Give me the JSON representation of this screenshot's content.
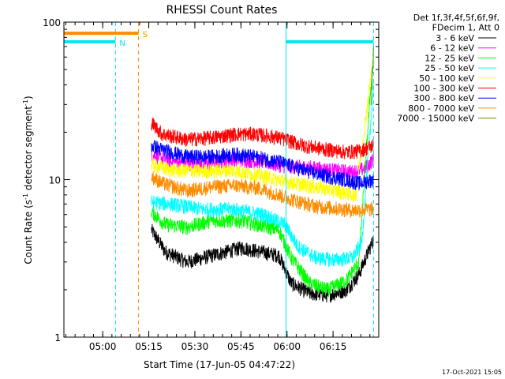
{
  "chart_data": {
    "type": "line",
    "title": "RHESSI Count Rates",
    "xlabel": "Start Time (17-Jun-05 04:47:22)",
    "ylabel_main": "Count Rate (s",
    "ylabel_sup1": "-1",
    "ylabel_mid": " detector segment",
    "ylabel_sup2": "-1",
    "ylabel_end": ")",
    "y_scale": "log",
    "ylim": [
      1,
      100
    ],
    "x_ticks": [
      "05:00",
      "05:15",
      "05:30",
      "05:45",
      "06:00",
      "06:15"
    ],
    "x_tick_minutes": [
      12.63,
      27.63,
      42.63,
      57.63,
      72.63,
      87.63
    ],
    "xlim_minutes": [
      0,
      102.5
    ],
    "y_ticks": [
      "1",
      "10",
      "100"
    ],
    "y_tick_values": [
      1,
      10,
      100
    ],
    "legend_header": [
      "Det 1f,3f,4f,5f,6f,9f,",
      "FDecim 1, Att 0"
    ],
    "legend_placement": "right",
    "data_start_minute": 28.5,
    "data_end_minute": 100.8,
    "series": [
      {
        "name": "3 - 6 keV",
        "color": "#000000",
        "x": [
          28.5,
          33,
          40,
          48,
          58,
          70,
          74,
          80,
          86,
          92,
          96,
          100.8
        ],
        "y": [
          4.8,
          3.5,
          3.0,
          3.3,
          3.7,
          3.3,
          2.2,
          1.9,
          1.85,
          2.0,
          2.5,
          4.2
        ]
      },
      {
        "name": "6 - 12 keV",
        "color": "#ff00ff",
        "x": [
          28.5,
          35,
          45,
          55,
          65,
          72,
          80,
          88,
          94,
          98,
          100.8
        ],
        "y": [
          14.5,
          13.0,
          12.5,
          13.5,
          13.0,
          12.2,
          12.0,
          11.5,
          11.2,
          11.8,
          13.5
        ]
      },
      {
        "name": "12 - 25 keV",
        "color": "#00ff00",
        "x": [
          28.5,
          33,
          40,
          48,
          58,
          70,
          74,
          80,
          86,
          92,
          96,
          100.8
        ],
        "y": [
          6.3,
          5.2,
          5.0,
          5.5,
          5.5,
          4.8,
          3.2,
          2.2,
          2.0,
          2.3,
          3.0,
          70
        ]
      },
      {
        "name": "25 - 50 keV",
        "color": "#00ffff",
        "x": [
          28.5,
          35,
          45,
          55,
          65,
          72,
          76,
          82,
          88,
          94,
          97,
          100.8
        ],
        "y": [
          7.2,
          7.0,
          6.5,
          6.5,
          6.0,
          5.2,
          3.8,
          3.2,
          3.1,
          3.2,
          4.0,
          40
        ]
      },
      {
        "name": "50 - 100 keV",
        "color": "#ffff00",
        "x": [
          28.5,
          35,
          45,
          55,
          65,
          75,
          85,
          95,
          100.8
        ],
        "y": [
          12.5,
          11.5,
          11.3,
          11.5,
          10.5,
          9.5,
          8.8,
          8.0,
          60
        ]
      },
      {
        "name": "100 - 300 keV",
        "color": "#ff0000",
        "x": [
          28.5,
          32,
          40,
          48,
          56,
          62,
          70,
          78,
          86,
          92,
          96,
          100.8
        ],
        "y": [
          23,
          19.5,
          18.0,
          18.5,
          19.5,
          19.5,
          18.5,
          16.5,
          15.5,
          15.0,
          15.2,
          16.5
        ]
      },
      {
        "name": "300 - 800 keV",
        "color": "#0000ff",
        "x": [
          28.5,
          32,
          40,
          48,
          56,
          62,
          70,
          78,
          86,
          92,
          96,
          100.8
        ],
        "y": [
          16.5,
          15.5,
          14.0,
          14.0,
          14.5,
          14.0,
          13.0,
          11.5,
          10.5,
          10.0,
          9.5,
          10.0
        ]
      },
      {
        "name": "800 - 7000 keV",
        "color": "#ff8c00",
        "x": [
          28.5,
          32,
          40,
          48,
          56,
          64,
          70,
          76,
          82,
          88,
          94,
          100.8
        ],
        "y": [
          10.5,
          9.5,
          8.5,
          9.0,
          9.2,
          8.8,
          8.0,
          7.3,
          6.8,
          6.6,
          6.4,
          6.5
        ]
      },
      {
        "name": "7000 - 15000 keV",
        "color": "#808000",
        "x": [
          100.0,
          100.8
        ],
        "y": [
          30,
          65
        ]
      }
    ],
    "markers": [
      {
        "label": "N",
        "color": "#00e5ee",
        "bar_from": 0,
        "bar_to": 16.8,
        "bar_y": 75,
        "dashed_at": 16.8
      },
      {
        "label": "S",
        "color": "#ff8c00",
        "bar_from": 0,
        "bar_to": 24.3,
        "bar_y": 85,
        "dashed_at": 24.3
      },
      {
        "label": "",
        "color": "#00e5ee",
        "bar_from": 72.3,
        "bar_to": 100.8,
        "bar_y": 75,
        "solid_at": 72.3,
        "dashed_at": 100.8
      }
    ],
    "grid": false
  },
  "footer_date": "17-Oct-2021 15:05"
}
